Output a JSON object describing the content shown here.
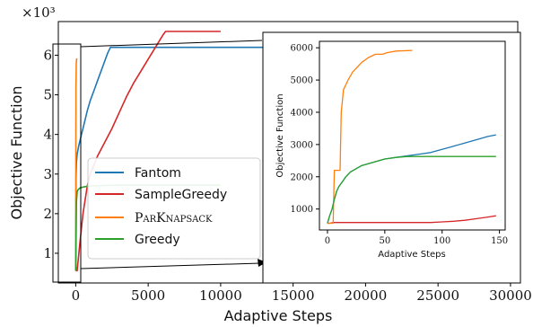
{
  "chart_data": [
    {
      "type": "line",
      "panel": "main",
      "multiplier_label": "×10³",
      "xlabel": "Adaptive Steps",
      "ylabel": "Objective Function",
      "xlim": [
        -1200,
        30500
      ],
      "ylim": [
        0.25,
        6.85
      ],
      "xticks": [
        0,
        5000,
        10000,
        15000,
        20000,
        25000,
        30000
      ],
      "yticks": [
        1,
        2,
        3,
        4,
        5,
        6
      ],
      "legend_position": "center-right",
      "series": [
        {
          "name": "Fantom",
          "color": "#1f77b4",
          "x": [
            0,
            20,
            50,
            100,
            150,
            200,
            400,
            600,
            800,
            1000,
            1300,
            1600,
            1900,
            2200,
            2400,
            2600,
            29300
          ],
          "y": [
            0.56,
            2.9,
            3.3,
            3.5,
            3.6,
            3.7,
            4.0,
            4.3,
            4.6,
            4.85,
            5.15,
            5.45,
            5.75,
            6.05,
            6.2,
            6.2,
            6.2
          ]
        },
        {
          "name": "SampleGreedy",
          "color": "#d62728",
          "x": [
            0,
            100,
            300,
            500,
            800,
            1000,
            1500,
            2000,
            2500,
            3000,
            3500,
            4000,
            4500,
            5000,
            5500,
            6000,
            6200,
            7000,
            10000
          ],
          "y": [
            0.56,
            0.56,
            1.3,
            2.0,
            2.7,
            3.0,
            3.45,
            3.8,
            4.15,
            4.55,
            4.95,
            5.3,
            5.6,
            5.9,
            6.2,
            6.5,
            6.6,
            6.6,
            6.6
          ]
        },
        {
          "name": "ParKnapsack",
          "color": "#ff7f0e",
          "x": [
            0,
            5,
            8,
            10,
            12,
            15,
            20,
            30,
            40,
            50,
            60,
            74
          ],
          "y": [
            0.56,
            2.2,
            3.0,
            4.0,
            4.7,
            5.2,
            5.3,
            5.6,
            5.8,
            5.85,
            5.9,
            5.92
          ]
        },
        {
          "name": "Greedy",
          "color": "#2ca02c",
          "x": [
            0,
            50,
            100,
            150,
            300,
            600,
            1000,
            3000,
            10000
          ],
          "y": [
            0.56,
            2.3,
            2.55,
            2.6,
            2.65,
            2.68,
            2.7,
            2.72,
            2.72
          ]
        }
      ]
    },
    {
      "type": "line",
      "panel": "inset",
      "xlabel": "Adaptive Steps",
      "ylabel": "Objective Function",
      "xlim": [
        -7,
        155
      ],
      "ylim": [
        350,
        6200
      ],
      "xticks": [
        0,
        50,
        100,
        150
      ],
      "yticks": [
        1000,
        2000,
        3000,
        4000,
        5000,
        6000
      ],
      "series": [
        {
          "name": "Fantom",
          "color": "#1f77b4",
          "x": [
            0,
            2,
            4,
            6,
            8,
            10,
            13,
            16,
            20,
            25,
            30,
            40,
            50,
            60,
            70,
            80,
            90,
            100,
            110,
            120,
            130,
            140,
            147
          ],
          "y": [
            560,
            800,
            1000,
            1300,
            1550,
            1700,
            1850,
            2000,
            2150,
            2250,
            2350,
            2450,
            2550,
            2600,
            2650,
            2700,
            2750,
            2850,
            2950,
            3050,
            3150,
            3250,
            3300
          ]
        },
        {
          "name": "SampleGreedy",
          "color": "#d62728",
          "x": [
            0,
            2,
            5,
            20,
            50,
            90,
            100,
            110,
            120,
            130,
            140,
            147
          ],
          "y": [
            560,
            560,
            580,
            580,
            580,
            580,
            600,
            620,
            650,
            700,
            750,
            790
          ]
        },
        {
          "name": "ParKnapsack",
          "color": "#ff7f0e",
          "x": [
            0,
            5,
            6,
            11,
            12,
            14,
            18,
            22,
            26,
            30,
            36,
            42,
            48,
            52,
            60,
            74
          ],
          "y": [
            560,
            560,
            2200,
            2200,
            4000,
            4700,
            5000,
            5250,
            5400,
            5550,
            5700,
            5800,
            5800,
            5850,
            5900,
            5920
          ]
        },
        {
          "name": "Greedy",
          "color": "#2ca02c",
          "x": [
            0,
            2,
            4,
            6,
            8,
            10,
            13,
            16,
            20,
            25,
            30,
            40,
            50,
            60,
            70,
            80,
            90,
            100,
            147
          ],
          "y": [
            560,
            800,
            1000,
            1300,
            1550,
            1700,
            1850,
            2000,
            2150,
            2250,
            2350,
            2450,
            2550,
            2600,
            2630,
            2630,
            2630,
            2630,
            2630
          ]
        }
      ]
    }
  ]
}
